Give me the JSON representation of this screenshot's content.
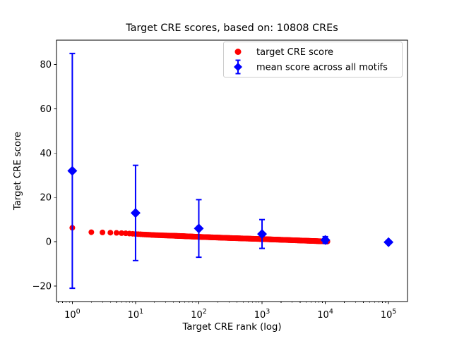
{
  "figure": {
    "background": "#ffffff"
  },
  "chart_data": {
    "type": "scatter",
    "title": "Target CRE scores, based on: 10808 CREs",
    "xlabel": "Target CRE rank (log)",
    "ylabel": "Target CRE score",
    "x_scale": "log10",
    "xlim_log10": [
      -0.25,
      5.3
    ],
    "ylim": [
      -27,
      91
    ],
    "x_major_tick_exponents": [
      0,
      1,
      2,
      3,
      4,
      5
    ],
    "y_ticks": [
      -20,
      0,
      20,
      40,
      60,
      80
    ],
    "n_cres": 10808,
    "grid": false,
    "legend": {
      "position": "upper right",
      "entries": [
        {
          "label": "target CRE score",
          "marker": "circle",
          "color": "#ff0000"
        },
        {
          "label": "mean score across all motifs",
          "marker": "diamond-errorbar",
          "color": "#0000ff"
        }
      ]
    },
    "series": [
      {
        "name": "target CRE score",
        "marker": "circle",
        "color": "#ff0000",
        "n_points": 10808,
        "sampled_points_rank_score": [
          [
            1,
            6.3
          ],
          [
            2,
            4.3
          ],
          [
            3,
            4.2
          ],
          [
            4,
            4.1
          ],
          [
            5,
            4.0
          ],
          [
            7,
            3.8
          ],
          [
            10,
            3.5
          ],
          [
            20,
            3.0
          ],
          [
            50,
            2.6
          ],
          [
            100,
            2.2
          ],
          [
            300,
            1.7
          ],
          [
            1000,
            1.2
          ],
          [
            3000,
            0.7
          ],
          [
            10808,
            0.1
          ]
        ]
      },
      {
        "name": "mean score across all motifs",
        "marker": "diamond",
        "color": "#0000ff",
        "points": [
          {
            "rank": 1,
            "mean": 32,
            "err": 53
          },
          {
            "rank": 10,
            "mean": 13,
            "err": 21.5
          },
          {
            "rank": 100,
            "mean": 6,
            "err": 13
          },
          {
            "rank": 1000,
            "mean": 3.5,
            "err": 6.5
          },
          {
            "rank": 10000,
            "mean": 0.8,
            "err": 1.5
          },
          {
            "rank": 100000,
            "mean": -0.2,
            "err": 0.4
          }
        ]
      }
    ]
  },
  "colors": {
    "red": "#ff0000",
    "blue": "#0000ff",
    "axis": "#000000",
    "legend_border": "#cccccc",
    "background": "#ffffff"
  }
}
